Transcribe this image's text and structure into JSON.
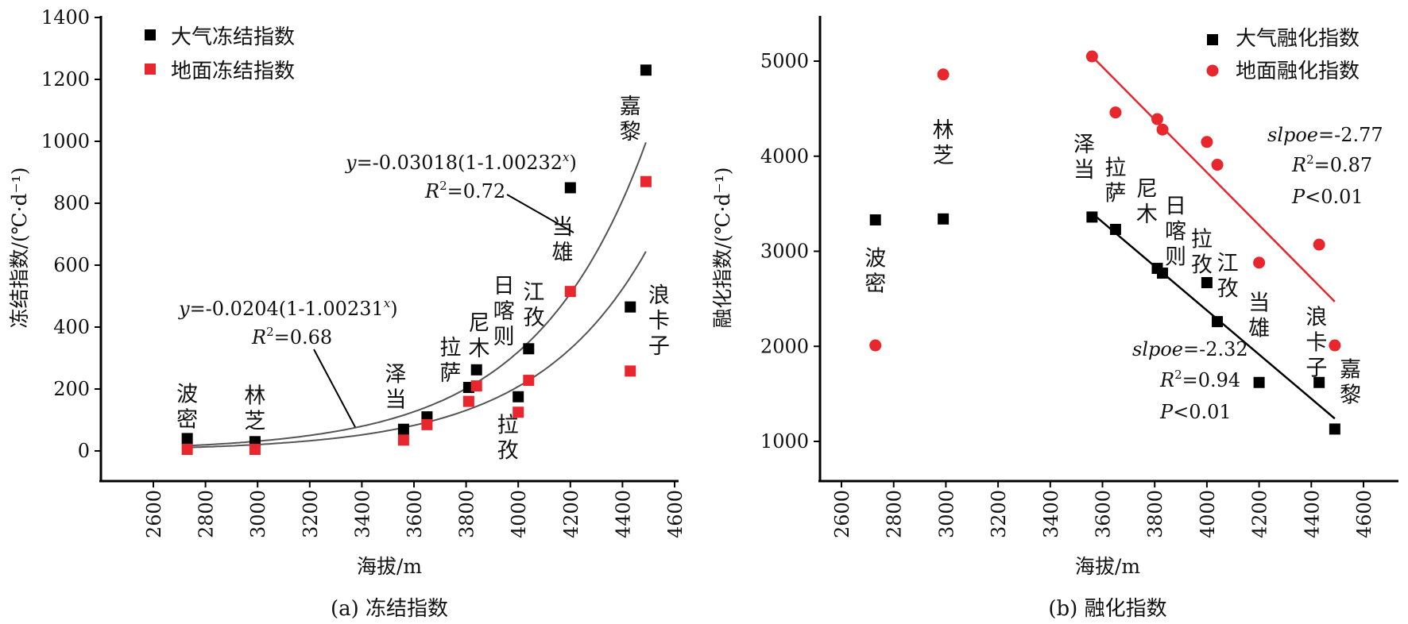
{
  "chart_data": [
    {
      "type": "scatter",
      "caption": "(a) 冻结指数",
      "xlabel": "海拔/m",
      "ylabel": "冻结指数/(℃·d⁻¹)",
      "xlim": [
        2500,
        4700
      ],
      "ylim": [
        -100,
        1400
      ],
      "xticks": [
        2600,
        2800,
        3000,
        3200,
        3400,
        3600,
        3800,
        4000,
        4200,
        4400,
        4600
      ],
      "yticks": [
        0,
        200,
        400,
        600,
        800,
        1000,
        1200,
        1400
      ],
      "series": [
        {
          "name": "大气冻结指数",
          "color": "#000000",
          "marker": "square",
          "points": [
            {
              "x": 2730,
              "y": 40
            },
            {
              "x": 2990,
              "y": 30
            },
            {
              "x": 3560,
              "y": 70
            },
            {
              "x": 3650,
              "y": 110
            },
            {
              "x": 3810,
              "y": 205
            },
            {
              "x": 3840,
              "y": 262
            },
            {
              "x": 4000,
              "y": 175
            },
            {
              "x": 4040,
              "y": 330
            },
            {
              "x": 4200,
              "y": 850
            },
            {
              "x": 4430,
              "y": 465
            },
            {
              "x": 4490,
              "y": 1230
            }
          ]
        },
        {
          "name": "地面冻结指数",
          "color": "#e8262d",
          "marker": "square",
          "points": [
            {
              "x": 2730,
              "y": 5
            },
            {
              "x": 2990,
              "y": 5
            },
            {
              "x": 3560,
              "y": 35
            },
            {
              "x": 3650,
              "y": 85
            },
            {
              "x": 3810,
              "y": 160
            },
            {
              "x": 3840,
              "y": 210
            },
            {
              "x": 4000,
              "y": 125
            },
            {
              "x": 4040,
              "y": 228
            },
            {
              "x": 4200,
              "y": 515
            },
            {
              "x": 4430,
              "y": 258
            },
            {
              "x": 4490,
              "y": 870
            }
          ]
        }
      ],
      "fits": [
        {
          "kind": "exp",
          "a": -0.03018,
          "b": 1.00232,
          "from": 2730,
          "to": 4490,
          "color": "#555555"
        },
        {
          "kind": "exp",
          "a": -0.0204,
          "b": 1.00231,
          "from": 2730,
          "to": 4490,
          "color": "#555555"
        }
      ],
      "annotations": [
        {
          "eq_a": "y",
          "eq_b": "=-0.03018(1-1.00232",
          "eq_c": "x",
          "eq_d": ")",
          "r_a": "R",
          "r_b": "2",
          "r_c": "=0.72"
        },
        {
          "eq_a": "y",
          "eq_b": "=-0.0204(1-1.00231",
          "eq_c": "x",
          "eq_d": ")",
          "r_a": "R",
          "r_b": "2",
          "r_c": "=0.68"
        }
      ],
      "sites": [
        {
          "text": "波密",
          "x": 2730,
          "y": 160
        },
        {
          "text": "林芝",
          "x": 2990,
          "y": 155
        },
        {
          "text": "泽当",
          "x": 3530,
          "y": 225
        },
        {
          "text": "拉萨",
          "x": 3740,
          "y": 310
        },
        {
          "text": "尼木",
          "x": 3850,
          "y": 390
        },
        {
          "text": "日喀则",
          "x": 3945,
          "y": 510
        },
        {
          "text": "江孜",
          "x": 4060,
          "y": 490
        },
        {
          "text": "拉孜",
          "x": 3960,
          "y": 60
        },
        {
          "text": "当雄",
          "x": 4170,
          "y": 700
        },
        {
          "text": "嘉黎",
          "x": 4430,
          "y": 1090
        },
        {
          "text": "浪卡子",
          "x": 4540,
          "y": 480
        }
      ]
    },
    {
      "type": "scatter",
      "caption": "(b) 融化指数",
      "xlabel": "海拔/m",
      "ylabel": "融化指数/(℃·d⁻¹)",
      "xlim": [
        2500,
        4700
      ],
      "ylim": [
        500,
        5500
      ],
      "xticks": [
        2600,
        2800,
        3000,
        3200,
        3400,
        3600,
        3800,
        4000,
        4200,
        4400,
        4600
      ],
      "yticks": [
        1000,
        2000,
        3000,
        4000,
        5000
      ],
      "series": [
        {
          "name": "大气融化指数",
          "color": "#000000",
          "marker": "square",
          "points": [
            {
              "x": 2730,
              "y": 3330
            },
            {
              "x": 2990,
              "y": 3340
            },
            {
              "x": 3560,
              "y": 3360
            },
            {
              "x": 3650,
              "y": 3230
            },
            {
              "x": 3810,
              "y": 2820
            },
            {
              "x": 3830,
              "y": 2770
            },
            {
              "x": 4000,
              "y": 2670
            },
            {
              "x": 4040,
              "y": 2260
            },
            {
              "x": 4200,
              "y": 1620
            },
            {
              "x": 4430,
              "y": 1620
            },
            {
              "x": 4490,
              "y": 1130
            }
          ]
        },
        {
          "name": "地面融化指数",
          "color": "#e8262d",
          "marker": "circle",
          "points": [
            {
              "x": 2730,
              "y": 2010
            },
            {
              "x": 2990,
              "y": 4860
            },
            {
              "x": 3560,
              "y": 5050
            },
            {
              "x": 3650,
              "y": 4460
            },
            {
              "x": 3810,
              "y": 4390
            },
            {
              "x": 3830,
              "y": 4280
            },
            {
              "x": 4000,
              "y": 4150
            },
            {
              "x": 4040,
              "y": 3910
            },
            {
              "x": 4200,
              "y": 2880
            },
            {
              "x": 4430,
              "y": 3070
            },
            {
              "x": 4490,
              "y": 2010
            }
          ]
        }
      ],
      "fits": [
        {
          "kind": "line",
          "x1": 3560,
          "y1": 5050,
          "x2": 4490,
          "y2": 2470,
          "color": "#e8262d"
        },
        {
          "kind": "line",
          "x1": 3560,
          "y1": 3400,
          "x2": 4490,
          "y2": 1240,
          "color": "#000000"
        }
      ],
      "annotations": [
        {
          "slope_a": "slpoe",
          "slope_b": "=-2.77",
          "r_a": "R",
          "r_b": "2",
          "r_c": "=0.87",
          "p_a": "P",
          "p_b": "<0.01"
        },
        {
          "slope_a": "slpoe",
          "slope_b": "=-2.32",
          "r_a": "R",
          "r_b": "2",
          "r_c": "=0.94",
          "p_a": "P",
          "p_b": "<0.01"
        }
      ],
      "sites": [
        {
          "text": "波密",
          "x": 2730,
          "y": 2850
        },
        {
          "text": "林芝",
          "x": 2990,
          "y": 4200
        },
        {
          "text": "泽当",
          "x": 3530,
          "y": 4050
        },
        {
          "text": "拉萨",
          "x": 3650,
          "y": 3800
        },
        {
          "text": "尼木",
          "x": 3770,
          "y": 3580
        },
        {
          "text": "日喀则",
          "x": 3880,
          "y": 3400
        },
        {
          "text": "拉孜",
          "x": 3980,
          "y": 3050
        },
        {
          "text": "江孜",
          "x": 4080,
          "y": 2800
        },
        {
          "text": "当雄",
          "x": 4200,
          "y": 2380
        },
        {
          "text": "浪卡子",
          "x": 4420,
          "y": 2230
        },
        {
          "text": "嘉黎",
          "x": 4550,
          "y": 1680
        }
      ]
    }
  ]
}
